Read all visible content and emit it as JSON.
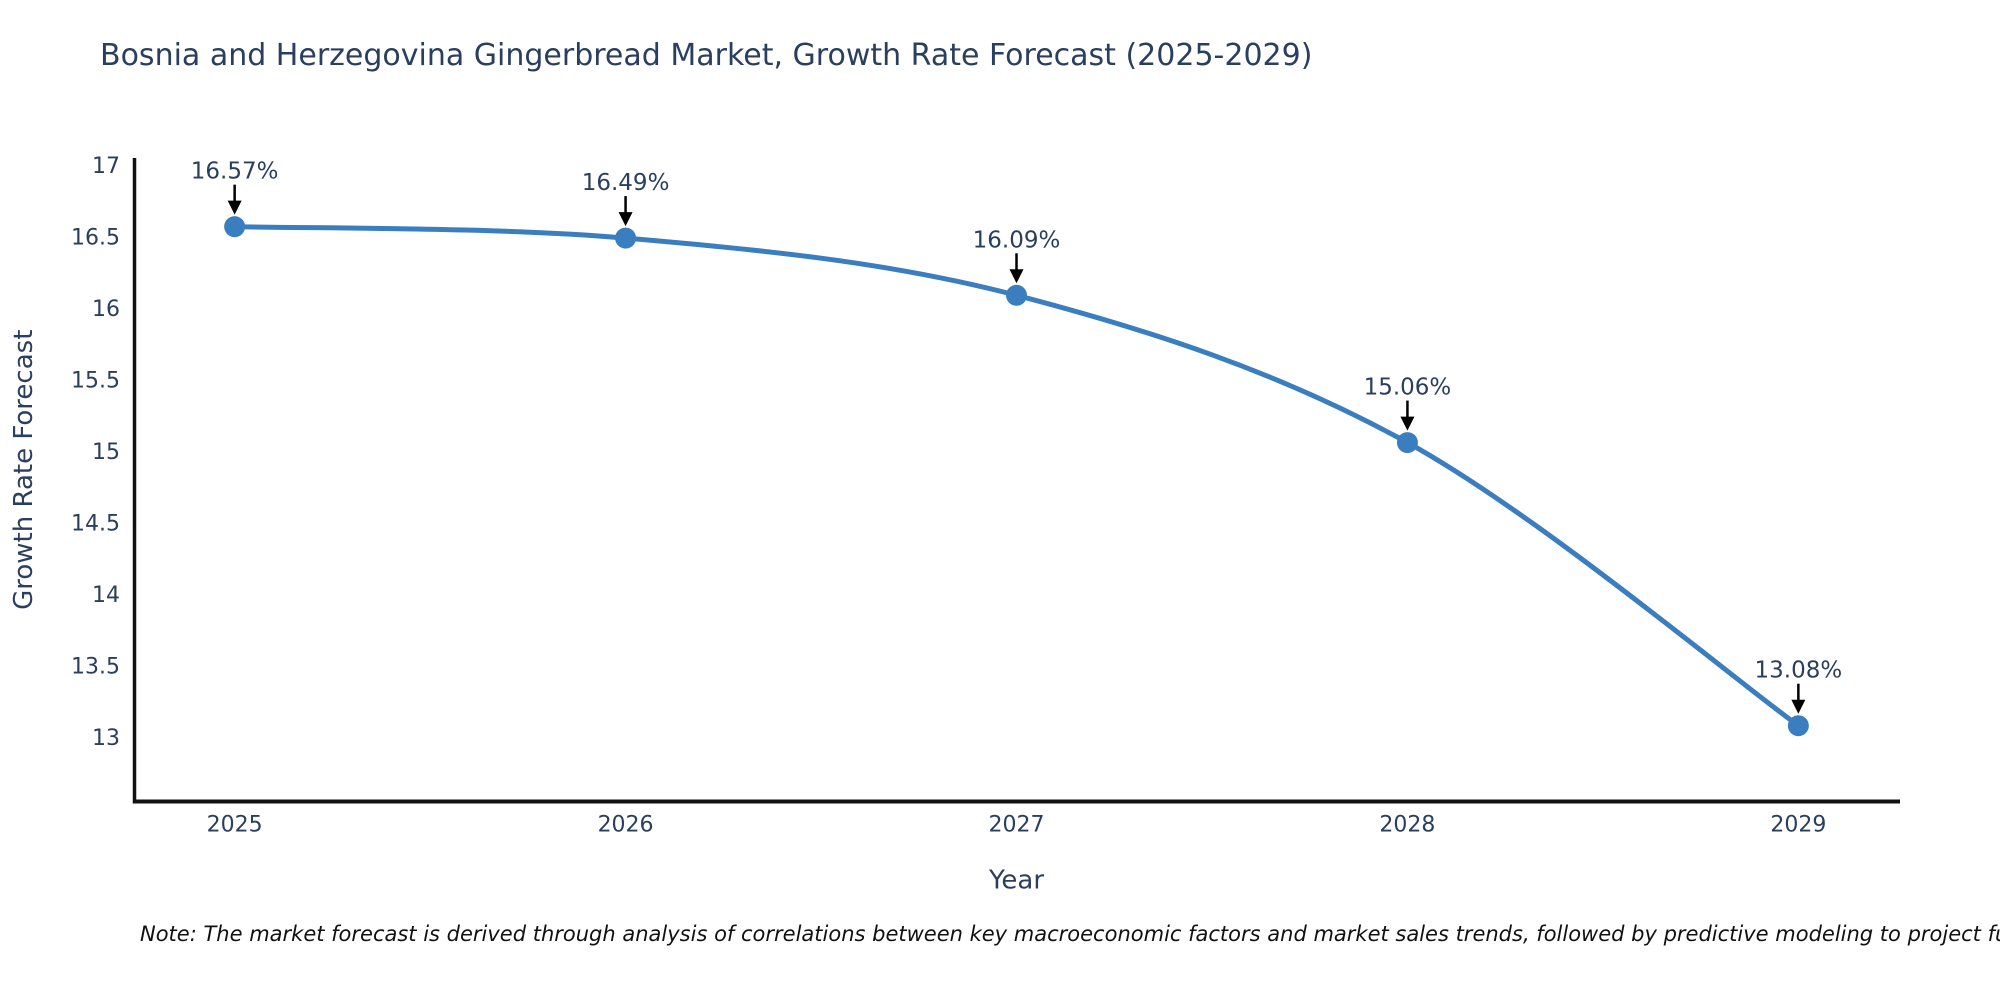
{
  "page": {
    "note": "Note: The market forecast is derived through analysis of correlations between key macroeconomic factors and market sales trends, followed by predictive modeling to project future sal"
  },
  "colors": {
    "line": "#3a7ebf",
    "marker": "#3a7ebf",
    "text": "#2a3f5f",
    "axis": "#111111",
    "arrow": "#000000",
    "background": "#ffffff"
  },
  "chart_data": {
    "type": "line",
    "title": "Bosnia and Herzegovina Gingerbread Market, Growth Rate Forecast (2025-2029)",
    "xlabel": "Year",
    "ylabel": "Growth Rate Forecast",
    "x": [
      2025,
      2026,
      2027,
      2028,
      2029
    ],
    "values": [
      16.57,
      16.49,
      16.09,
      15.06,
      13.08
    ],
    "point_labels": [
      "16.57%",
      "16.49%",
      "16.09%",
      "15.06%",
      "13.08%"
    ],
    "xticks": [
      2025,
      2026,
      2027,
      2028,
      2029
    ],
    "yticks": [
      13,
      13.5,
      14,
      14.5,
      15,
      15.5,
      16,
      16.5,
      17
    ],
    "xlim": [
      2024.74,
      2029.26
    ],
    "ylim": [
      12.55,
      17.05
    ],
    "line_shape": "spline",
    "grid": false,
    "legend": false,
    "annotations_have_arrows": true
  }
}
